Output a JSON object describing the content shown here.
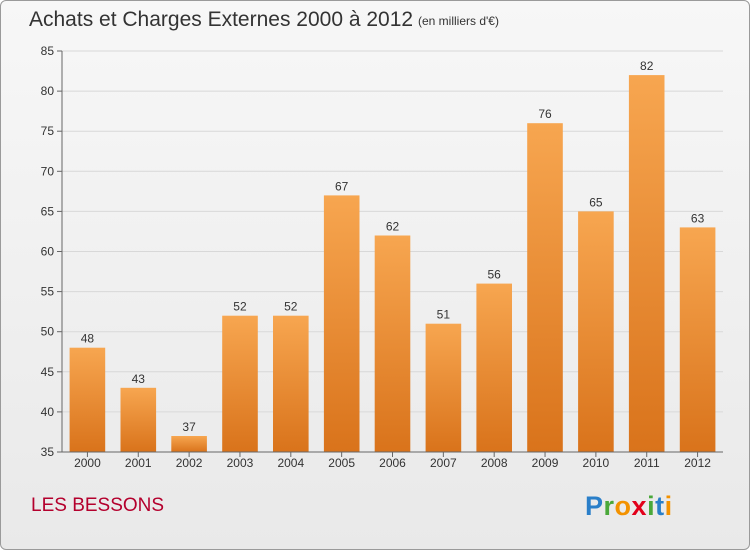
{
  "header": {
    "title": "Achats et Charges Externes 2000 à 2012",
    "subtitle": "(en milliers d'€)"
  },
  "footer": {
    "town": "LES BESSONS",
    "logo_letters": [
      {
        "char": "P",
        "color": "#2a7fc9"
      },
      {
        "char": "r",
        "color": "#4aa83a"
      },
      {
        "char": "o",
        "color": "#f39200"
      },
      {
        "char": "x",
        "color": "#e2001a"
      },
      {
        "char": "i",
        "color": "#4aa83a"
      },
      {
        "char": "t",
        "color": "#2a7fc9"
      },
      {
        "char": "i",
        "color": "#f39200"
      }
    ]
  },
  "colors": {
    "bar_top": "#f7a650",
    "bar_bottom": "#d9731b",
    "grid": "#d8d8d8",
    "axis": "#666666"
  },
  "chart_data": {
    "type": "bar",
    "title": "Achats et Charges Externes 2000 à 2012",
    "subtitle": "(en milliers d'€)",
    "xlabel": "",
    "ylabel": "",
    "categories": [
      "2000",
      "2001",
      "2002",
      "2003",
      "2004",
      "2005",
      "2006",
      "2007",
      "2008",
      "2009",
      "2010",
      "2011",
      "2012"
    ],
    "values": [
      48,
      43,
      37,
      52,
      52,
      67,
      62,
      51,
      56,
      76,
      65,
      82,
      63
    ],
    "ylim": [
      35,
      85
    ],
    "yticks": [
      35,
      40,
      45,
      50,
      55,
      60,
      65,
      70,
      75,
      80,
      85
    ],
    "grid": true,
    "legend": "none"
  }
}
